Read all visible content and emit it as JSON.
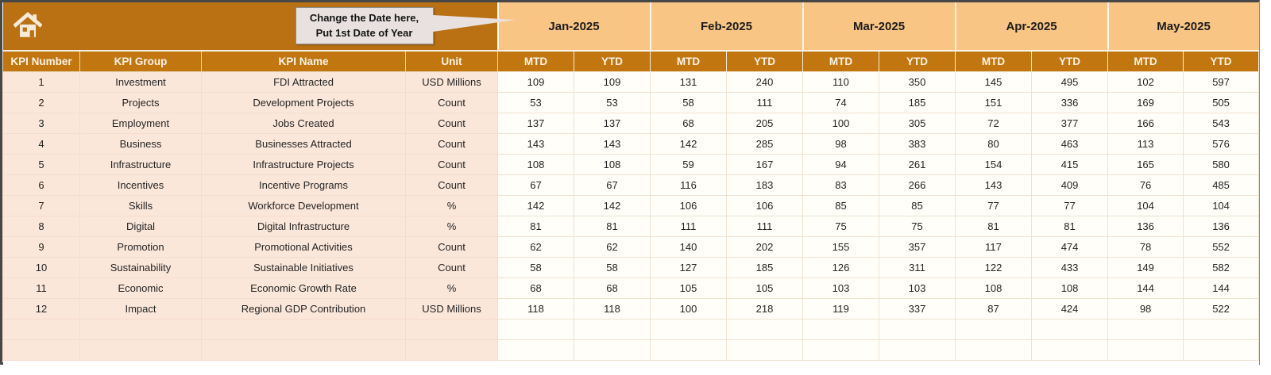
{
  "callout": {
    "line1": "Change the Date here,",
    "line2": "Put 1st Date of Year"
  },
  "columns": {
    "kpi_number": "KPI Number",
    "kpi_group": "KPI Group",
    "kpi_name": "KPI Name",
    "unit": "Unit",
    "mtd": "MTD",
    "ytd": "YTD"
  },
  "months": [
    "Jan-2025",
    "Feb-2025",
    "Mar-2025",
    "Apr-2025",
    "May-2025"
  ],
  "rows": [
    {
      "number": "1",
      "group": "Investment",
      "name": "FDI Attracted",
      "unit": "USD Millions",
      "values": [
        109,
        109,
        131,
        240,
        110,
        350,
        145,
        495,
        102,
        597
      ]
    },
    {
      "number": "2",
      "group": "Projects",
      "name": "Development Projects",
      "unit": "Count",
      "values": [
        53,
        53,
        58,
        111,
        74,
        185,
        151,
        336,
        169,
        505
      ]
    },
    {
      "number": "3",
      "group": "Employment",
      "name": "Jobs Created",
      "unit": "Count",
      "values": [
        137,
        137,
        68,
        205,
        100,
        305,
        72,
        377,
        166,
        543
      ]
    },
    {
      "number": "4",
      "group": "Business",
      "name": "Businesses Attracted",
      "unit": "Count",
      "values": [
        143,
        143,
        142,
        285,
        98,
        383,
        80,
        463,
        113,
        576
      ]
    },
    {
      "number": "5",
      "group": "Infrastructure",
      "name": "Infrastructure Projects",
      "unit": "Count",
      "values": [
        108,
        108,
        59,
        167,
        94,
        261,
        154,
        415,
        165,
        580
      ]
    },
    {
      "number": "6",
      "group": "Incentives",
      "name": "Incentive Programs",
      "unit": "Count",
      "values": [
        67,
        67,
        116,
        183,
        83,
        266,
        143,
        409,
        76,
        485
      ]
    },
    {
      "number": "7",
      "group": "Skills",
      "name": "Workforce Development",
      "unit": "%",
      "values": [
        142,
        142,
        106,
        106,
        85,
        85,
        77,
        77,
        104,
        104
      ]
    },
    {
      "number": "8",
      "group": "Digital",
      "name": "Digital Infrastructure",
      "unit": "%",
      "values": [
        81,
        81,
        111,
        111,
        75,
        75,
        81,
        81,
        136,
        136
      ]
    },
    {
      "number": "9",
      "group": "Promotion",
      "name": "Promotional Activities",
      "unit": "Count",
      "values": [
        62,
        62,
        140,
        202,
        155,
        357,
        117,
        474,
        78,
        552
      ]
    },
    {
      "number": "10",
      "group": "Sustainability",
      "name": "Sustainable Initiatives",
      "unit": "Count",
      "values": [
        58,
        58,
        127,
        185,
        126,
        311,
        122,
        433,
        149,
        582
      ]
    },
    {
      "number": "11",
      "group": "Economic",
      "name": "Economic Growth Rate",
      "unit": "%",
      "values": [
        68,
        68,
        105,
        105,
        103,
        103,
        108,
        108,
        144,
        144
      ]
    },
    {
      "number": "12",
      "group": "Impact",
      "name": "Regional GDP Contribution",
      "unit": "USD Millions",
      "values": [
        118,
        118,
        100,
        218,
        119,
        337,
        87,
        424,
        98,
        522
      ]
    }
  ],
  "empty_rows": 2,
  "colors": {
    "banner_orange": "#b97113",
    "header_orange": "#c1760f",
    "month_orange": "#f9c585",
    "row_peach": "#fbe7da",
    "cell_white": "#fffef9",
    "callout_bg": "#e9e1e0",
    "icon_cream": "#f6ead9"
  }
}
